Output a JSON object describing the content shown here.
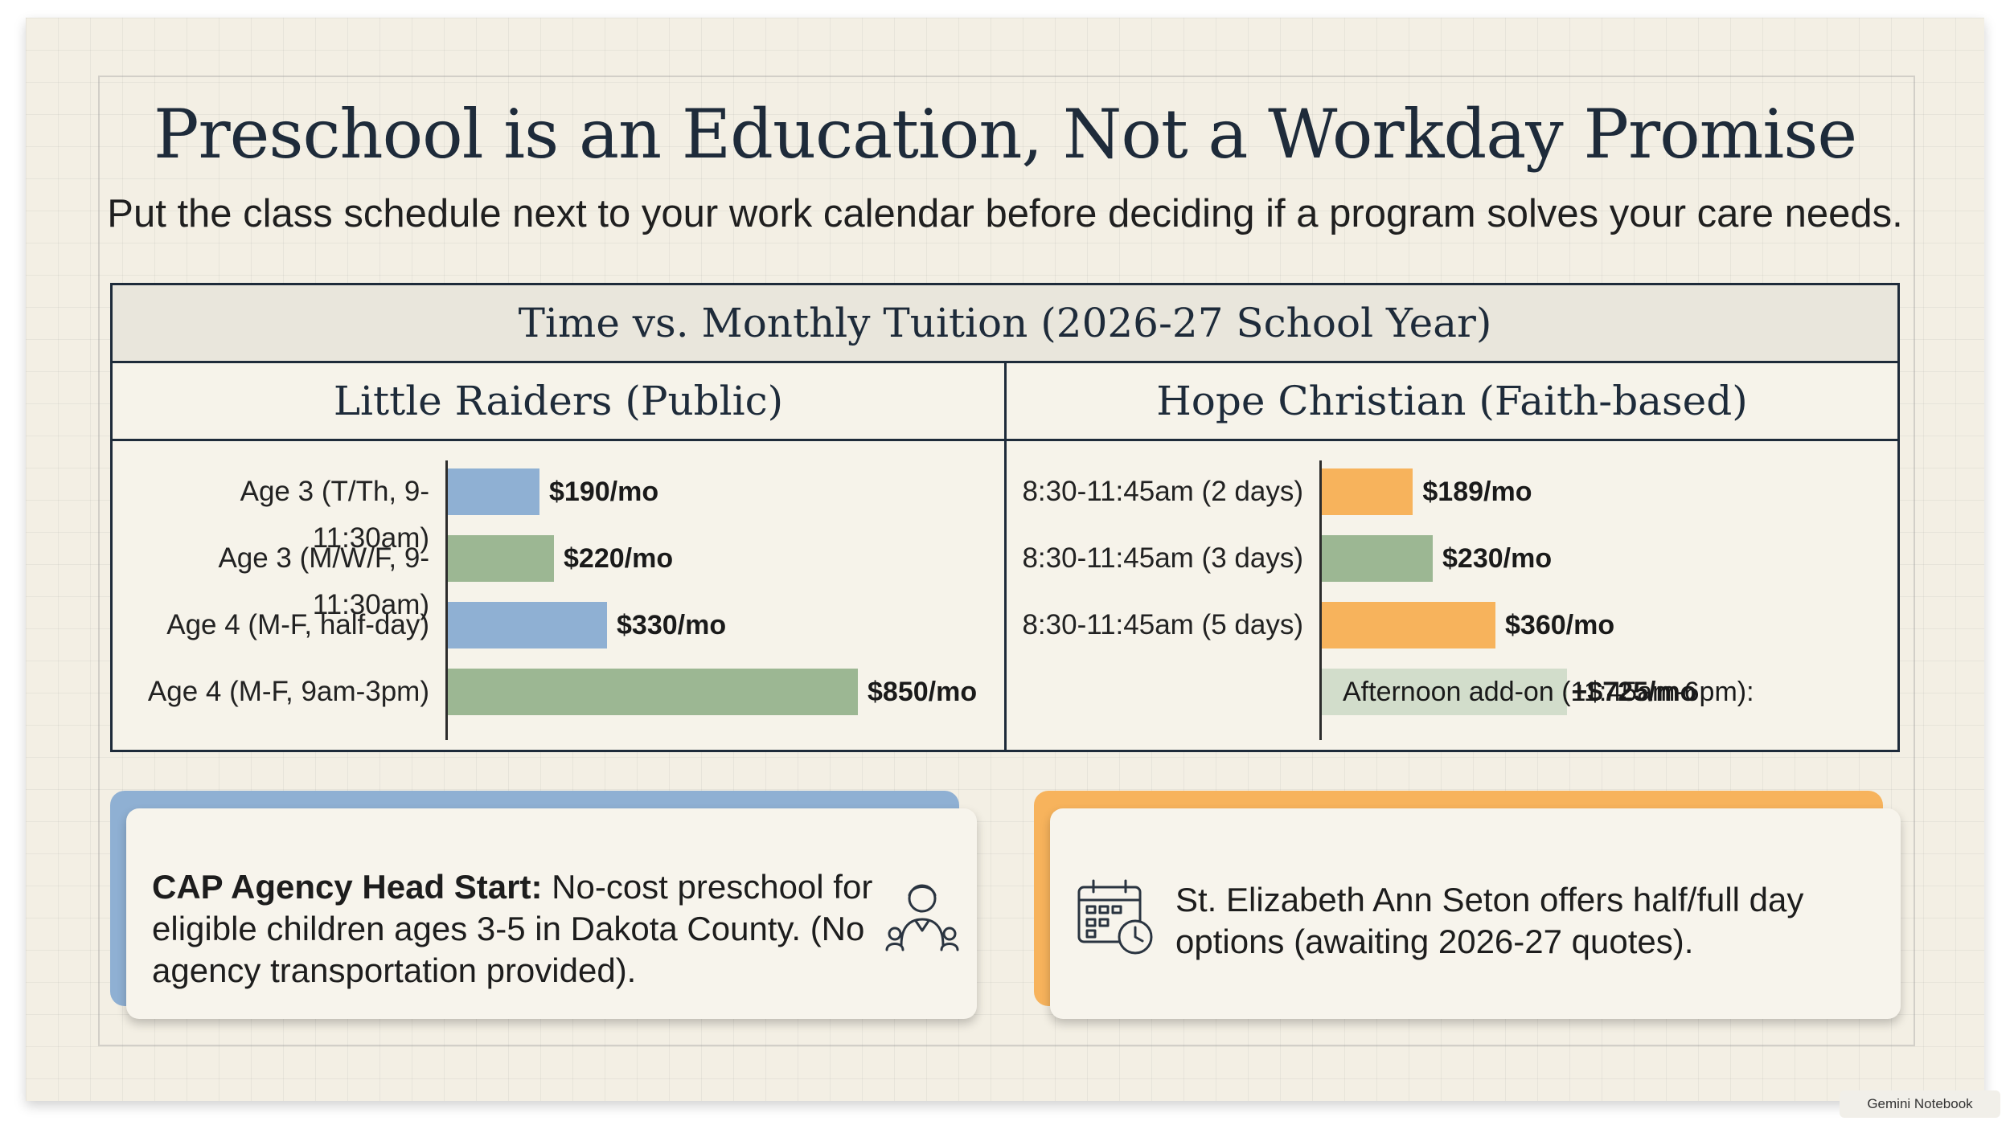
{
  "title": "Preschool is an Education, Not a Workday Promise",
  "subtitle": "Put the class schedule next to your work calendar before deciding if a program solves your care needs.",
  "colors": {
    "blue": "#8fb0d3",
    "green": "#9cb793",
    "orange": "#f7b35c",
    "addon_green": "#d2ddcb",
    "navy": "#1e2b3a"
  },
  "chart_data": [
    {
      "type": "bar",
      "orientation": "horizontal",
      "title": "Time vs. Monthly Tuition (2026-27 School Year)",
      "panel": "Little Raiders (Public)",
      "categories": [
        "Age 3 (T/Th, 9-11:30am)",
        "Age 3 (M/W/F, 9-11:30am)",
        "Age 4 (M-F, half-day)",
        "Age 4 (M-F, 9am-3pm)"
      ],
      "values": [
        190,
        220,
        330,
        850
      ],
      "value_labels": [
        "$190/mo",
        "$220/mo",
        "$330/mo",
        "$850/mo"
      ],
      "bar_colors": [
        "#8fb0d3",
        "#9cb793",
        "#8fb0d3",
        "#9cb793"
      ],
      "xlim": [
        0,
        900
      ]
    },
    {
      "type": "bar",
      "orientation": "horizontal",
      "panel": "Hope Christian (Faith-based)",
      "categories": [
        "8:30-11:45am (2 days)",
        "8:30-11:45am (3 days)",
        "8:30-11:45am (5 days)"
      ],
      "values": [
        189,
        230,
        360
      ],
      "value_labels": [
        "$189/mo",
        "$230/mo",
        "$360/mo"
      ],
      "bar_colors": [
        "#f7b35c",
        "#9cb793",
        "#f7b35c"
      ],
      "addon": {
        "label": "Afternoon add-on (11:45am-6pm):",
        "value": 725,
        "value_label": "+$725/mo",
        "color": "#d2ddcb"
      },
      "xlim": [
        0,
        900
      ]
    }
  ],
  "cards": {
    "head_start": {
      "bold": "CAP Agency Head Start:",
      "text": " No-cost preschool for eligible children ages 3-5 in Dakota County. (No agency transportation provided).",
      "icon": "teacher-icon"
    },
    "seton": {
      "text": "St. Elizabeth Ann Seton offers half/full day options (awaiting 2026-27 quotes).",
      "icon": "calendar-clock-icon"
    }
  },
  "watermark": "Gemini Notebook"
}
